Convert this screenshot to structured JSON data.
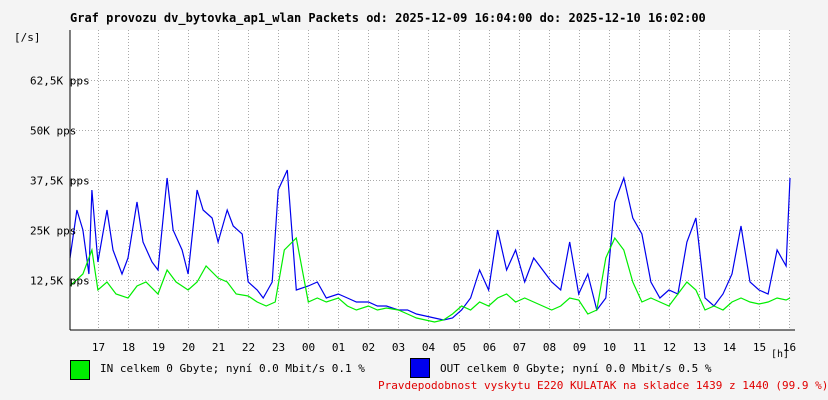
{
  "title": "Graf provozu dv_bytovka_ap1_wlan Packets od: 2025-12-09 16:04:00 do: 2025-12-10 16:02:00",
  "y_unit": "[/s]",
  "x_unit": "[h]",
  "legend": {
    "in_text": "IN celkem 0 Gbyte; nyní   0.0 Mbit/s 0.1 %",
    "out_text": "OUT celkem 0 Gbyte; nyní   0.0 Mbit/s 0.5 %"
  },
  "footer": "Pravdepodobnost vyskytu E220 KULATAK na skladce 1439 z 1440 (99.9 %)",
  "colors": {
    "in": "#00ee00",
    "out": "#0000ee",
    "grid": "#aaaaaa",
    "footer": "#e00000"
  },
  "chart_data": {
    "type": "line",
    "title": "Graf provozu dv_bytovka_ap1_wlan Packets od: 2025-12-09 16:04:00 do: 2025-12-10 16:02:00",
    "ylabel": "[/s]",
    "xlabel": "[h]",
    "ylim": [
      0,
      75000
    ],
    "xlim": [
      16.07,
      40.03
    ],
    "yticks": [
      12500,
      25000,
      37500,
      50000,
      62500
    ],
    "ytick_labels": [
      "12,5K pps",
      "25K pps",
      "37,5K pps",
      "50K pps",
      "62,5K pps"
    ],
    "xticks": [
      17,
      18,
      19,
      20,
      21,
      22,
      23,
      24,
      25,
      26,
      27,
      28,
      29,
      30,
      31,
      32,
      33,
      34,
      35,
      36,
      37,
      38,
      39,
      40
    ],
    "xtick_labels": [
      "17",
      "18",
      "19",
      "20",
      "21",
      "22",
      "23",
      "00",
      "01",
      "02",
      "03",
      "04",
      "05",
      "06",
      "07",
      "08",
      "09",
      "10",
      "11",
      "12",
      "13",
      "14",
      "15",
      "16"
    ],
    "grid": true,
    "series": [
      {
        "name": "IN",
        "x": [
          16.07,
          16.5,
          16.8,
          17.0,
          17.3,
          17.6,
          18.0,
          18.3,
          18.6,
          19.0,
          19.3,
          19.6,
          20.0,
          20.3,
          20.6,
          21.0,
          21.3,
          21.6,
          22.0,
          22.3,
          22.6,
          22.9,
          23.2,
          23.6,
          24.0,
          24.3,
          24.6,
          25.0,
          25.3,
          25.6,
          26.0,
          26.3,
          26.6,
          27.0,
          27.3,
          27.6,
          27.9,
          28.2,
          28.5,
          28.8,
          29.1,
          29.4,
          29.7,
          30.0,
          30.3,
          30.6,
          30.9,
          31.2,
          31.5,
          31.8,
          32.1,
          32.4,
          32.7,
          33.0,
          33.3,
          33.6,
          33.9,
          34.2,
          34.5,
          34.8,
          35.1,
          35.4,
          35.7,
          36.0,
          36.3,
          36.6,
          36.9,
          37.2,
          37.5,
          37.8,
          38.1,
          38.4,
          38.7,
          39.0,
          39.3,
          39.6,
          39.9,
          40.03
        ],
        "values": [
          11000,
          14000,
          20000,
          10000,
          12000,
          9000,
          8000,
          11000,
          12000,
          9000,
          15000,
          12000,
          10000,
          12000,
          16000,
          13000,
          12000,
          9000,
          8500,
          7000,
          6000,
          7000,
          20000,
          23000,
          7000,
          8000,
          7000,
          8000,
          6000,
          5000,
          6000,
          5000,
          5500,
          5000,
          4000,
          3000,
          2500,
          2000,
          2500,
          4000,
          6000,
          5000,
          7000,
          6000,
          8000,
          9000,
          7000,
          8000,
          7000,
          6000,
          5000,
          6000,
          8000,
          7500,
          4000,
          5000,
          18000,
          23000,
          20000,
          12000,
          7000,
          8000,
          7000,
          6000,
          9000,
          12000,
          10000,
          5000,
          6000,
          5000,
          7000,
          8000,
          7000,
          6500,
          7000,
          8000,
          7500,
          8000
        ]
      },
      {
        "name": "OUT",
        "x": [
          16.07,
          16.3,
          16.5,
          16.7,
          16.8,
          17.0,
          17.3,
          17.5,
          17.8,
          18.0,
          18.3,
          18.5,
          18.8,
          19.0,
          19.3,
          19.5,
          19.8,
          20.0,
          20.3,
          20.5,
          20.8,
          21.0,
          21.3,
          21.5,
          21.8,
          22.0,
          22.3,
          22.5,
          22.8,
          23.0,
          23.3,
          23.6,
          24.0,
          24.3,
          24.6,
          25.0,
          25.3,
          25.6,
          26.0,
          26.3,
          26.6,
          27.0,
          27.3,
          27.6,
          27.9,
          28.2,
          28.5,
          28.8,
          29.1,
          29.4,
          29.7,
          30.0,
          30.3,
          30.6,
          30.9,
          31.2,
          31.5,
          31.8,
          32.1,
          32.4,
          32.7,
          33.0,
          33.3,
          33.6,
          33.9,
          34.2,
          34.5,
          34.8,
          35.1,
          35.4,
          35.7,
          36.0,
          36.3,
          36.6,
          36.9,
          37.2,
          37.5,
          37.8,
          38.1,
          38.4,
          38.7,
          39.0,
          39.3,
          39.6,
          39.9,
          40.03
        ],
        "values": [
          18000,
          30000,
          25000,
          14000,
          35000,
          17000,
          30000,
          20000,
          14000,
          18000,
          32000,
          22000,
          17000,
          15000,
          38000,
          25000,
          20000,
          14000,
          35000,
          30000,
          28000,
          22000,
          30000,
          26000,
          24000,
          12000,
          10000,
          8000,
          12000,
          35000,
          40000,
          10000,
          11000,
          12000,
          8000,
          9000,
          8000,
          7000,
          7000,
          6000,
          6000,
          5000,
          5000,
          4000,
          3500,
          3000,
          2500,
          3000,
          5000,
          8000,
          15000,
          10000,
          25000,
          15000,
          20000,
          12000,
          18000,
          15000,
          12000,
          10000,
          22000,
          9000,
          14000,
          5000,
          8000,
          32000,
          38000,
          28000,
          24000,
          12000,
          8000,
          10000,
          9000,
          22000,
          28000,
          8000,
          6000,
          9000,
          14000,
          26000,
          12000,
          10000,
          9000,
          20000,
          16000,
          38000
        ]
      }
    ]
  }
}
